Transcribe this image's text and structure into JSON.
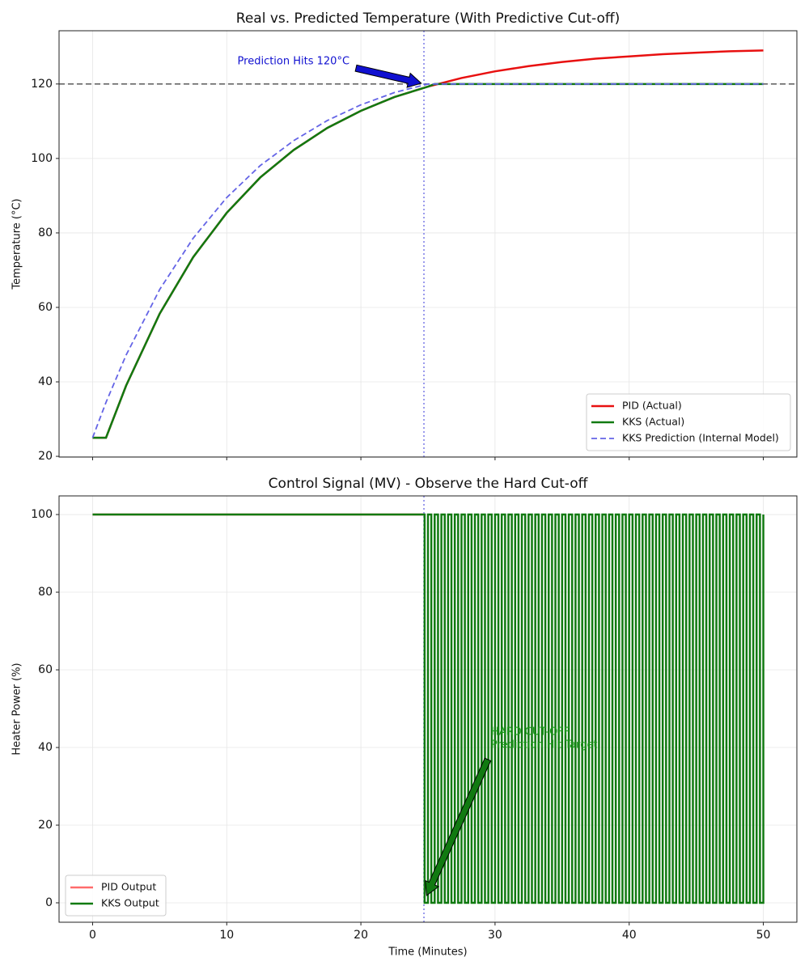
{
  "chart_data": [
    {
      "type": "line",
      "title": "Real vs. Predicted Temperature (With Predictive Cut-off)",
      "ylabel": "Temperature (°C)",
      "xlim": [
        -2.5,
        52.5
      ],
      "ylim": [
        19.8,
        134.3
      ],
      "xticks": [
        0,
        10,
        20,
        30,
        40,
        50
      ],
      "yticks": [
        20,
        40,
        60,
        80,
        100,
        120
      ],
      "show_xtick_labels": false,
      "grid": true,
      "legend": "lower right",
      "hlines": [
        {
          "value": 120,
          "color": "#666666",
          "style": "dashed"
        }
      ],
      "vlines": [
        {
          "value": 24.7,
          "color": "#7a7ae6",
          "style": "dotted"
        }
      ],
      "series": [
        {
          "name": "PID (Actual)",
          "color": "#e81010",
          "width": 2.5,
          "style": "solid",
          "x": [
            0,
            1,
            2.5,
            5,
            7.5,
            10,
            12.5,
            15,
            17.5,
            20,
            22.5,
            25,
            27.5,
            30,
            32.5,
            35,
            37.5,
            40,
            42.5,
            45,
            47.5,
            50
          ],
          "values": [
            25,
            25,
            39.0,
            58.3,
            73.5,
            85.4,
            94.9,
            102.3,
            108.2,
            112.8,
            116.5,
            119.3,
            121.6,
            123.4,
            124.8,
            125.9,
            126.8,
            127.4,
            128.0,
            128.4,
            128.8,
            129.0
          ]
        },
        {
          "name": "KKS (Actual)",
          "color": "#117a11",
          "width": 2.5,
          "style": "solid",
          "x": [
            0,
            1,
            2.5,
            5,
            7.5,
            10,
            12.5,
            15,
            17.5,
            20,
            22.5,
            25,
            25.5,
            27.5,
            30,
            32.5,
            35,
            37.5,
            40,
            42.5,
            45,
            47.5,
            50
          ],
          "values": [
            25,
            25,
            39.0,
            58.3,
            73.5,
            85.4,
            94.9,
            102.3,
            108.2,
            112.8,
            116.5,
            119.3,
            120,
            120,
            120,
            120,
            120,
            120,
            120,
            120,
            120,
            120,
            120
          ]
        },
        {
          "name": "KKS Prediction (Internal Model)",
          "color": "#6464e6",
          "width": 1.8,
          "style": "dashed",
          "x": [
            0,
            1,
            2.5,
            5,
            7.5,
            10,
            12.5,
            15,
            17.5,
            20,
            22.5,
            25,
            27.5,
            30,
            32.5,
            35,
            37.5,
            40,
            42.5,
            45,
            47.5,
            50
          ],
          "values": [
            25,
            34.5,
            47.2,
            64.8,
            78.6,
            89.5,
            98.1,
            104.8,
            110.2,
            114.4,
            117.7,
            120,
            120,
            120,
            120,
            120,
            120,
            120,
            120,
            120,
            120,
            120
          ]
        }
      ],
      "annotations": [
        {
          "text": [
            "Prediction Hits 120°C"
          ],
          "color": "#1010d0",
          "arrow_color": "#1010d0",
          "xy": [
            24.5,
            120.2
          ],
          "xytext": [
            10.8,
            126
          ]
        }
      ]
    },
    {
      "type": "line",
      "title": "Control Signal (MV) - Observe the Hard Cut-off",
      "xlabel": "Time (Minutes)",
      "ylabel": "Heater Power (%)",
      "xlim": [
        -2.5,
        52.5
      ],
      "ylim": [
        -5,
        104.8
      ],
      "xticks": [
        0,
        10,
        20,
        30,
        40,
        50
      ],
      "yticks": [
        0,
        20,
        40,
        60,
        80,
        100
      ],
      "show_xtick_labels": true,
      "grid": true,
      "legend": "lower left",
      "hlines": [],
      "vlines": [
        {
          "value": 24.7,
          "color": "#7a7ae6",
          "style": "dotted"
        }
      ],
      "series": [
        {
          "name": "PID Output",
          "color": "#ff6b6b",
          "width": 2.5,
          "style": "solid",
          "x": [
            0,
            24.7
          ],
          "values": [
            100,
            100
          ]
        },
        {
          "name": "KKS Output",
          "color": "#117a11",
          "width": 2.5,
          "style": "solid",
          "step": true,
          "x": [
            0,
            24.75,
            25,
            25.25,
            25.5,
            25.75,
            26,
            26.25,
            26.5,
            26.75,
            27,
            27.25,
            27.5,
            27.75,
            28,
            28.25,
            28.5,
            28.75,
            29,
            29.25,
            29.5,
            29.75,
            30,
            30.25,
            30.5,
            30.75,
            31,
            31.25,
            31.5,
            31.75,
            32,
            32.25,
            32.5,
            32.75,
            33,
            33.25,
            33.5,
            33.75,
            34,
            34.25,
            34.5,
            34.75,
            35,
            35.25,
            35.5,
            35.75,
            36,
            36.25,
            36.5,
            36.75,
            37,
            37.25,
            37.5,
            37.75,
            38,
            38.25,
            38.5,
            38.75,
            39,
            39.25,
            39.5,
            39.75,
            40,
            40.25,
            40.5,
            40.75,
            41,
            41.25,
            41.5,
            41.75,
            42,
            42.25,
            42.5,
            42.75,
            43,
            43.25,
            43.5,
            43.75,
            44,
            44.25,
            44.5,
            44.75,
            45,
            45.25,
            45.5,
            45.75,
            46,
            46.25,
            46.5,
            46.75,
            47,
            47.25,
            47.5,
            47.75,
            48,
            48.25,
            48.5,
            48.75,
            49,
            49.25,
            49.5,
            49.75,
            50
          ],
          "values": [
            100,
            0,
            100,
            0,
            100,
            0,
            100,
            0,
            100,
            0,
            100,
            0,
            100,
            0,
            100,
            0,
            100,
            0,
            100,
            0,
            100,
            0,
            100,
            0,
            100,
            0,
            100,
            0,
            100,
            0,
            100,
            0,
            100,
            0,
            100,
            0,
            100,
            0,
            100,
            0,
            100,
            0,
            100,
            0,
            100,
            0,
            100,
            0,
            100,
            0,
            100,
            0,
            100,
            0,
            100,
            0,
            100,
            0,
            100,
            0,
            100,
            0,
            100,
            0,
            100,
            0,
            100,
            0,
            100,
            0,
            100,
            0,
            100,
            0,
            100,
            0,
            100,
            0,
            100,
            0,
            100,
            0,
            100,
            0,
            100,
            0,
            100,
            0,
            100,
            0,
            100,
            0,
            100,
            0,
            100,
            0,
            100,
            0,
            100,
            0,
            100,
            0,
            100
          ]
        }
      ],
      "annotations": [
        {
          "text": [
            "HARD CUT-OFF",
            "Prediction Hit Target"
          ],
          "color": "#1a9a1a",
          "arrow_color": "#117a11",
          "xy": [
            24.9,
            1.9
          ],
          "xytext": [
            29.7,
            44
          ]
        }
      ]
    }
  ]
}
